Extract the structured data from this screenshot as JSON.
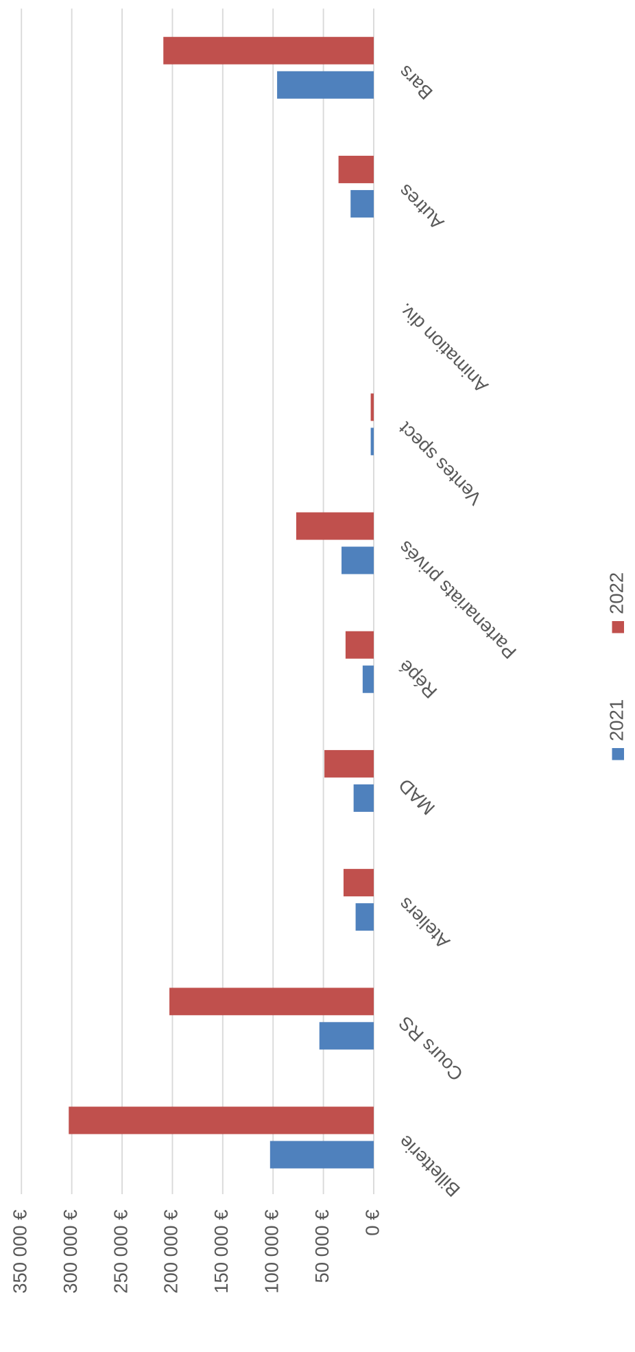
{
  "chart_data": {
    "type": "bar",
    "categories": [
      "Billetterie",
      "Cours RS",
      "Ateliers",
      "MAD",
      "Répé",
      "Partenariats privés",
      "Ventes spect",
      "Animation div.",
      "Autres",
      "Bars"
    ],
    "series": [
      {
        "name": "2021",
        "color": "#4f81bd",
        "values": [
          103000,
          54000,
          18000,
          20000,
          11000,
          32000,
          3000,
          0,
          23000,
          96000
        ]
      },
      {
        "name": "2022",
        "color": "#c0504d",
        "values": [
          303000,
          203000,
          30000,
          49000,
          28000,
          77000,
          3000,
          0,
          35000,
          209000
        ]
      }
    ],
    "ylim": [
      0,
      350000
    ],
    "yticks": [
      {
        "value": 0,
        "label": "0 €"
      },
      {
        "value": 50000,
        "label": "50 000 €"
      },
      {
        "value": 100000,
        "label": "100 000 €"
      },
      {
        "value": 150000,
        "label": "150 000 €"
      },
      {
        "value": 200000,
        "label": "200 000 €"
      },
      {
        "value": 250000,
        "label": "250 000 €"
      },
      {
        "value": 300000,
        "label": "300 000 €"
      },
      {
        "value": 350000,
        "label": "350 000 €"
      }
    ],
    "grid": true,
    "legend": "right"
  }
}
